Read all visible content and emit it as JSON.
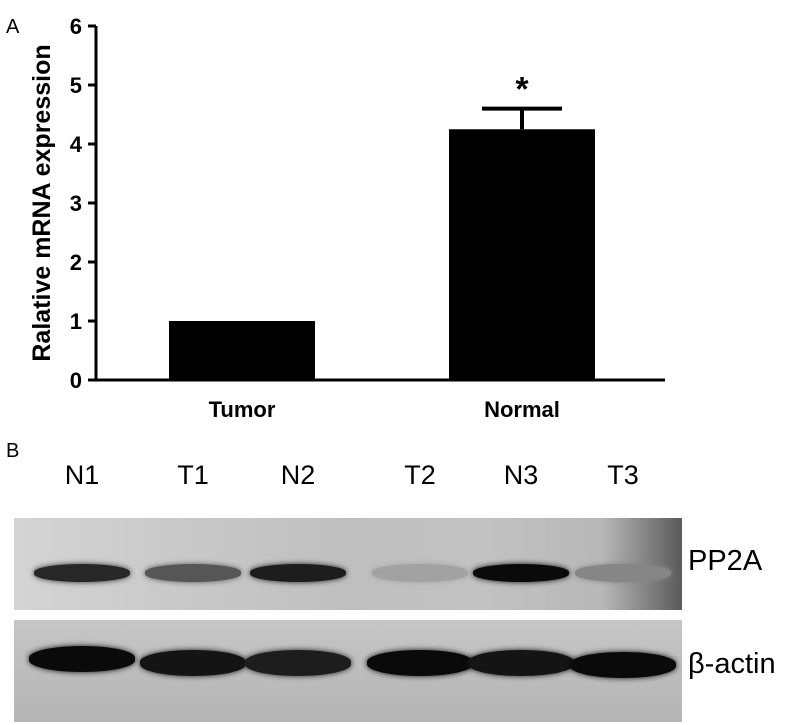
{
  "panel_a_label": "A",
  "panel_b_label": "B",
  "chart_data": {
    "type": "bar",
    "categories": [
      "Tumor",
      "Normal"
    ],
    "values": [
      1.0,
      4.25
    ],
    "error": [
      0.0,
      0.35
    ],
    "annotations": [
      "",
      "*"
    ],
    "title": "",
    "xlabel": "",
    "ylabel": "Ralative mRNA expression",
    "ylim": [
      0,
      6
    ],
    "yticks": [
      0,
      1,
      2,
      3,
      4,
      5,
      6
    ],
    "grid": false,
    "bar_color": "#000000"
  },
  "western_blot": {
    "lanes": [
      "N1",
      "T1",
      "N2",
      "T2",
      "N3",
      "T3"
    ],
    "rows": [
      {
        "label": "PP2A",
        "intensity": [
          0.85,
          0.6,
          0.9,
          0.2,
          1.0,
          0.35
        ]
      },
      {
        "label": "β-actin",
        "intensity": [
          1.0,
          0.95,
          0.9,
          1.0,
          0.95,
          1.0
        ]
      }
    ]
  }
}
